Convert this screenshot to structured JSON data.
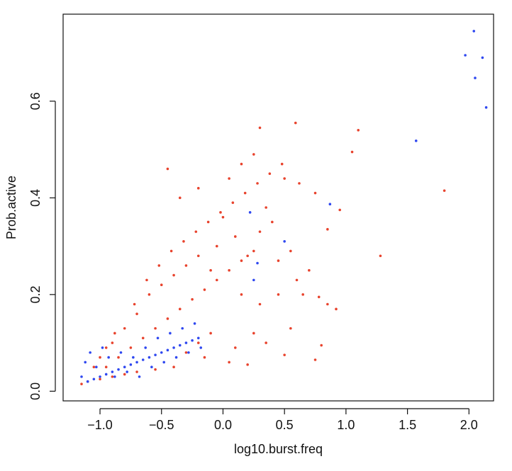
{
  "chart_data": {
    "type": "scatter",
    "title": "",
    "xlabel": "log10.burst.freq",
    "ylabel": "Prob.active",
    "xlim": [
      -1.3,
      2.2
    ],
    "ylim": [
      -0.02,
      0.78
    ],
    "x_ticks": [
      -1.0,
      -0.5,
      0.0,
      0.5,
      1.0,
      1.5,
      2.0
    ],
    "y_ticks": [
      0.0,
      0.2,
      0.4,
      0.6
    ],
    "x_tick_labels": [
      "−1.0",
      "−0.5",
      "0.0",
      "0.5",
      "1.0",
      "1.5",
      "2.0"
    ],
    "y_tick_labels": [
      "0.0",
      "0.2",
      "0.4",
      "0.6"
    ],
    "grid": false,
    "colors": {
      "red_series": "#E8432D",
      "blue_series": "#2F48F0"
    },
    "series": [
      {
        "color": "#E8432D",
        "points": [
          [
            0.59,
            0.555
          ],
          [
            0.3,
            0.545
          ],
          [
            1.1,
            0.54
          ],
          [
            1.05,
            0.495
          ],
          [
            0.25,
            0.49
          ],
          [
            -0.45,
            0.46
          ],
          [
            0.15,
            0.47
          ],
          [
            0.5,
            0.44
          ],
          [
            0.62,
            0.43
          ],
          [
            0.75,
            0.41
          ],
          [
            1.8,
            0.415
          ],
          [
            0.95,
            0.375
          ],
          [
            0.35,
            0.38
          ],
          [
            0.0,
            0.36
          ],
          [
            0.85,
            0.335
          ],
          [
            1.28,
            0.28
          ],
          [
            0.8,
            0.095
          ],
          [
            0.75,
            0.065
          ],
          [
            0.85,
            0.18
          ],
          [
            0.92,
            0.17
          ],
          [
            0.78,
            0.195
          ],
          [
            0.55,
            0.13
          ],
          [
            0.5,
            0.075
          ],
          [
            0.6,
            0.23
          ],
          [
            0.45,
            0.27
          ],
          [
            -0.2,
            0.42
          ],
          [
            -0.35,
            0.4
          ],
          [
            0.05,
            0.44
          ],
          [
            -0.1,
            0.25
          ],
          [
            0.2,
            0.28
          ],
          [
            0.1,
            0.32
          ],
          [
            -0.05,
            0.3
          ],
          [
            0.3,
            0.33
          ],
          [
            0.4,
            0.35
          ],
          [
            0.55,
            0.29
          ],
          [
            0.7,
            0.25
          ],
          [
            0.65,
            0.2
          ],
          [
            0.45,
            0.2
          ],
          [
            0.3,
            0.18
          ],
          [
            0.15,
            0.2
          ],
          [
            0.25,
            0.12
          ],
          [
            0.35,
            0.1
          ],
          [
            0.1,
            0.09
          ],
          [
            -0.1,
            0.12
          ],
          [
            -0.2,
            0.1
          ],
          [
            -0.3,
            0.08
          ],
          [
            -0.15,
            0.07
          ],
          [
            0.05,
            0.06
          ],
          [
            0.2,
            0.055
          ],
          [
            -0.4,
            0.05
          ],
          [
            -0.55,
            0.045
          ],
          [
            -0.7,
            0.04
          ],
          [
            -0.8,
            0.035
          ],
          [
            -0.9,
            0.03
          ],
          [
            -1.0,
            0.025
          ],
          [
            -1.1,
            0.02
          ],
          [
            -1.15,
            0.015
          ],
          [
            -0.95,
            0.05
          ],
          [
            -0.85,
            0.07
          ],
          [
            -0.75,
            0.09
          ],
          [
            -0.65,
            0.11
          ],
          [
            -0.55,
            0.13
          ],
          [
            -0.45,
            0.15
          ],
          [
            -0.35,
            0.17
          ],
          [
            -0.25,
            0.19
          ],
          [
            -0.15,
            0.21
          ],
          [
            -0.05,
            0.23
          ],
          [
            0.05,
            0.25
          ],
          [
            0.15,
            0.27
          ],
          [
            0.25,
            0.29
          ],
          [
            -0.6,
            0.2
          ],
          [
            -0.5,
            0.22
          ],
          [
            -0.4,
            0.24
          ],
          [
            -0.3,
            0.26
          ],
          [
            -0.2,
            0.28
          ],
          [
            -0.7,
            0.16
          ],
          [
            -0.8,
            0.13
          ],
          [
            -0.9,
            0.1
          ],
          [
            -1.0,
            0.07
          ],
          [
            -1.05,
            0.05
          ],
          [
            -0.95,
            0.09
          ],
          [
            -0.88,
            0.12
          ],
          [
            -0.72,
            0.18
          ],
          [
            -0.62,
            0.23
          ],
          [
            -0.52,
            0.26
          ],
          [
            -0.42,
            0.29
          ],
          [
            -0.32,
            0.31
          ],
          [
            -0.22,
            0.33
          ],
          [
            -0.12,
            0.35
          ],
          [
            -0.02,
            0.37
          ],
          [
            0.08,
            0.39
          ],
          [
            0.18,
            0.41
          ],
          [
            0.28,
            0.43
          ],
          [
            0.38,
            0.45
          ],
          [
            0.48,
            0.47
          ]
        ]
      },
      {
        "color": "#2F48F0",
        "points": [
          [
            2.04,
            0.745
          ],
          [
            1.97,
            0.695
          ],
          [
            2.11,
            0.69
          ],
          [
            2.05,
            0.648
          ],
          [
            2.14,
            0.587
          ],
          [
            1.57,
            0.518
          ],
          [
            0.87,
            0.387
          ],
          [
            0.22,
            0.37
          ],
          [
            0.5,
            0.31
          ],
          [
            0.28,
            0.265
          ],
          [
            0.25,
            0.23
          ],
          [
            -1.15,
            0.03
          ],
          [
            -1.1,
            0.02
          ],
          [
            -1.05,
            0.025
          ],
          [
            -1.0,
            0.03
          ],
          [
            -0.95,
            0.035
          ],
          [
            -0.9,
            0.04
          ],
          [
            -0.85,
            0.045
          ],
          [
            -0.8,
            0.05
          ],
          [
            -0.75,
            0.055
          ],
          [
            -0.7,
            0.06
          ],
          [
            -0.65,
            0.065
          ],
          [
            -0.6,
            0.07
          ],
          [
            -0.55,
            0.075
          ],
          [
            -0.5,
            0.08
          ],
          [
            -0.45,
            0.085
          ],
          [
            -0.4,
            0.09
          ],
          [
            -0.35,
            0.095
          ],
          [
            -0.3,
            0.1
          ],
          [
            -0.25,
            0.105
          ],
          [
            -0.2,
            0.11
          ],
          [
            -1.12,
            0.06
          ],
          [
            -1.08,
            0.08
          ],
          [
            -1.03,
            0.05
          ],
          [
            -0.98,
            0.09
          ],
          [
            -0.93,
            0.07
          ],
          [
            -0.88,
            0.03
          ],
          [
            -0.83,
            0.08
          ],
          [
            -0.78,
            0.04
          ],
          [
            -0.73,
            0.07
          ],
          [
            -0.68,
            0.03
          ],
          [
            -0.63,
            0.09
          ],
          [
            -0.58,
            0.05
          ],
          [
            -0.53,
            0.11
          ],
          [
            -0.48,
            0.06
          ],
          [
            -0.43,
            0.12
          ],
          [
            -0.38,
            0.07
          ],
          [
            -0.33,
            0.13
          ],
          [
            -0.28,
            0.08
          ],
          [
            -0.23,
            0.14
          ],
          [
            -0.18,
            0.09
          ]
        ]
      }
    ]
  }
}
